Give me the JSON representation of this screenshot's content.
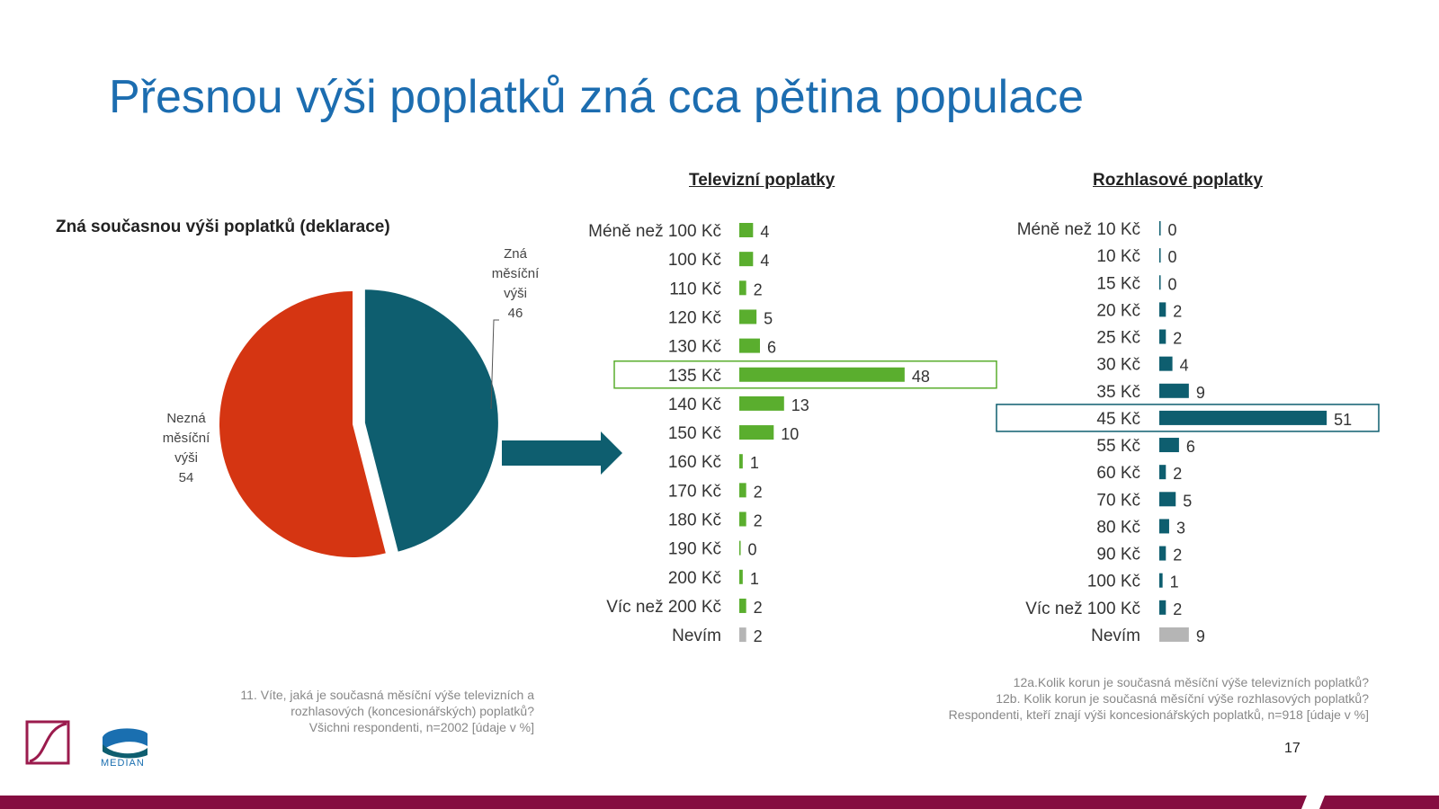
{
  "title": "Přesnou výši poplatků zná cca pětina populace",
  "colors": {
    "title": "#1c6db0",
    "teal": "#0e5e6f",
    "red": "#d53512",
    "green": "#5aae2e",
    "gray": "#b5b5b5",
    "footer_bar": "#850d40"
  },
  "chart_data": [
    {
      "type": "pie",
      "title": "Zná současnou výši poplatků (deklarace)",
      "slices": [
        {
          "name_lines": [
            "Zná",
            "měsíční",
            "výši"
          ],
          "value": 46,
          "color": "#0e5e6f",
          "exploded": true
        },
        {
          "name_lines": [
            "Nezná",
            "měsíční",
            "výši"
          ],
          "value": 54,
          "color": "#d53512"
        }
      ]
    },
    {
      "type": "bar",
      "orientation": "horizontal",
      "title": "Televizní poplatky",
      "categories": [
        "Méně než 100 Kč",
        "100 Kč",
        "110 Kč",
        "120 Kč",
        "130 Kč",
        "135 Kč",
        "140 Kč",
        "150 Kč",
        "160 Kč",
        "170 Kč",
        "180 Kč",
        "190 Kč",
        "200 Kč",
        "Víc než 200 Kč",
        "Nevím"
      ],
      "values": [
        4,
        4,
        2,
        5,
        6,
        48,
        13,
        10,
        1,
        2,
        2,
        0,
        1,
        2,
        2
      ],
      "highlight": "135 Kč",
      "color": "#5aae2e",
      "nevim_color": "#b5b5b5"
    },
    {
      "type": "bar",
      "orientation": "horizontal",
      "title": "Rozhlasové poplatky",
      "categories": [
        "Méně než 10 Kč",
        "10 Kč",
        "15 Kč",
        "20 Kč",
        "25 Kč",
        "30 Kč",
        "35 Kč",
        "45 Kč",
        "55 Kč",
        "60 Kč",
        "70 Kč",
        "80 Kč",
        "90 Kč",
        "100 Kč",
        "Víc než 100 Kč",
        "Nevím"
      ],
      "values": [
        0,
        0,
        0,
        2,
        2,
        4,
        9,
        51,
        6,
        2,
        5,
        3,
        2,
        1,
        2,
        9
      ],
      "highlight": "45 Kč",
      "color": "#0e5e6f",
      "nevim_color": "#b5b5b5"
    }
  ],
  "footnotes": {
    "left": [
      "11. Víte, jaká je současná měsíční výše televizních a",
      "rozhlasových (koncesionářských) poplatků?",
      "Všichni respondenti, n=2002 [údaje v %]"
    ],
    "right": [
      "12a.Kolik korun je současná měsíční výše televizních poplatků?",
      "12b. Kolik korun je současná měsíční výše rozhlasových poplatků?",
      "Respondenti, kteří znají výši koncesionářských poplatků, n=918  [údaje v %]"
    ]
  },
  "logos": {
    "median": "MEDIAN"
  },
  "page_number": "17"
}
